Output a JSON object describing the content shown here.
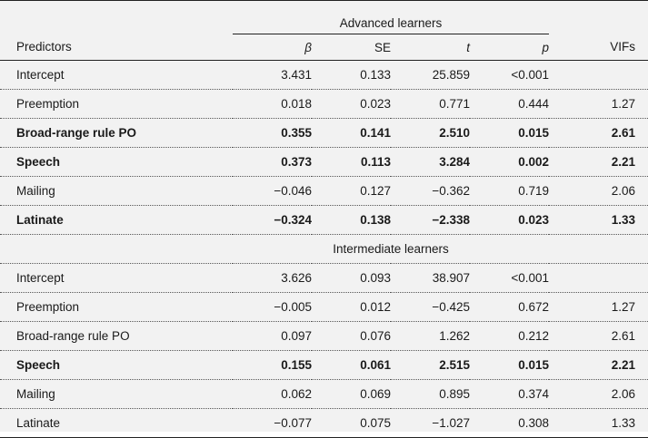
{
  "table": {
    "group_heading_advanced": "Advanced learners",
    "group_heading_intermediate": "Intermediate learners",
    "columns": {
      "predictors": "Predictors",
      "beta": "β",
      "se": "SE",
      "t": "t",
      "p": "p",
      "vifs": "VIFs"
    },
    "advanced": [
      {
        "predictor": "Intercept",
        "beta": "3.431",
        "se": "0.133",
        "t": "25.859",
        "p": "<0.001",
        "vif": "",
        "bold": false
      },
      {
        "predictor": "Preemption",
        "beta": "0.018",
        "se": "0.023",
        "t": "0.771",
        "p": "0.444",
        "vif": "1.27",
        "bold": false
      },
      {
        "predictor": "Broad-range rule PO",
        "beta": "0.355",
        "se": "0.141",
        "t": "2.510",
        "p": "0.015",
        "vif": "2.61",
        "bold": true
      },
      {
        "predictor": "Speech",
        "beta": "0.373",
        "se": "0.113",
        "t": "3.284",
        "p": "0.002",
        "vif": "2.21",
        "bold": true
      },
      {
        "predictor": "Mailing",
        "beta": "−0.046",
        "se": "0.127",
        "t": "−0.362",
        "p": "0.719",
        "vif": "2.06",
        "bold": false
      },
      {
        "predictor": "Latinate",
        "beta": "−0.324",
        "se": "0.138",
        "t": "−2.338",
        "p": "0.023",
        "vif": "1.33",
        "bold": true
      }
    ],
    "intermediate": [
      {
        "predictor": "Intercept",
        "beta": "3.626",
        "se": "0.093",
        "t": "38.907",
        "p": "<0.001",
        "vif": "",
        "bold": false
      },
      {
        "predictor": "Preemption",
        "beta": "−0.005",
        "se": "0.012",
        "t": "−0.425",
        "p": "0.672",
        "vif": "1.27",
        "bold": false
      },
      {
        "predictor": "Broad-range rule PO",
        "beta": "0.097",
        "se": "0.076",
        "t": "1.262",
        "p": "0.212",
        "vif": "2.61",
        "bold": false
      },
      {
        "predictor": "Speech",
        "beta": "0.155",
        "se": "0.061",
        "t": "2.515",
        "p": "0.015",
        "vif": "2.21",
        "bold": true
      },
      {
        "predictor": "Mailing",
        "beta": "0.062",
        "se": "0.069",
        "t": "0.895",
        "p": "0.374",
        "vif": "2.06",
        "bold": false
      },
      {
        "predictor": "Latinate",
        "beta": "−0.077",
        "se": "0.075",
        "t": "−1.027",
        "p": "0.308",
        "vif": "1.33",
        "bold": false
      }
    ]
  }
}
